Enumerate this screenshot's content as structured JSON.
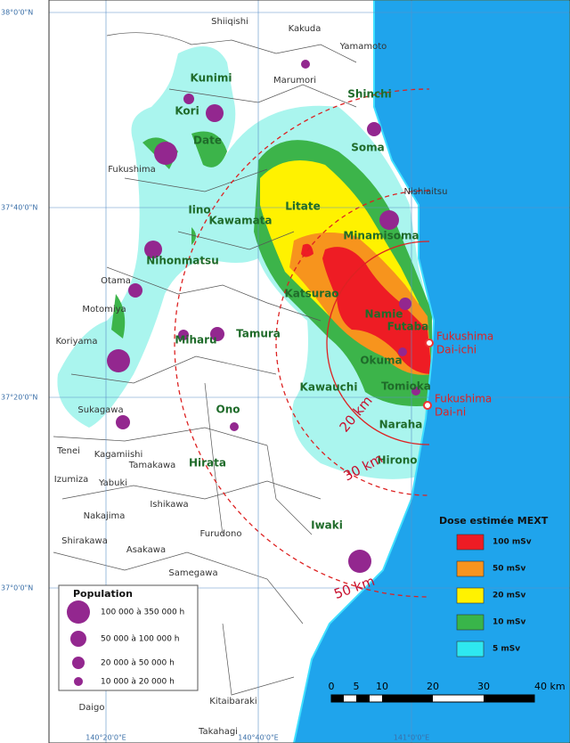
{
  "latitude_labels": [
    "38°0'0\"N",
    "37°40'0\"N",
    "37°20'0\"N",
    "37°0'0\"N"
  ],
  "longitude_labels": [
    "140°20'0\"E",
    "140°40'0\"E",
    "141°0'0\"E"
  ],
  "places": [
    "Shiiqishi",
    "Kakuda",
    "Yamamoto",
    "Marumori",
    "Kunimi",
    "Kori",
    "Shinchi",
    "Soma",
    "Nishiaitsu",
    "Date",
    "Fukushima",
    "Litate",
    "Iino",
    "Kawamata",
    "Minamisoma",
    "Nihonmatsu",
    "Otama",
    "Motomiya",
    "Katsurao",
    "Namie",
    "Futaba",
    "Koriyama",
    "Miharu",
    "Tamura",
    "Okuma",
    "Tomioka",
    "Kawauchi",
    "Ono",
    "Naraha",
    "Sukagawa",
    "Hirata",
    "Hirono",
    "Tenei",
    "Kagamiishi",
    "Tamakawa",
    "Izumiza",
    "Yabuki",
    "Ishikawa",
    "Nakajima",
    "Shirakawa",
    "Furudono",
    "Asakawa",
    "Iwaki",
    "Samegawa",
    "Kitaibaraki",
    "Takahagi",
    "Daigo"
  ],
  "distance_rings": [
    "20 km",
    "30 km",
    "50 km"
  ],
  "power_plants": [
    [
      "Fukushima",
      "Dai-ichi"
    ],
    [
      "Fukushima",
      "Dai-ni"
    ]
  ],
  "dose_legend": {
    "title": "Dose estimée MEXT",
    "items": [
      {
        "label": "100 mSv",
        "color": "#ee1c24"
      },
      {
        "label": "50 mSv",
        "color": "#f7941d"
      },
      {
        "label": "20 mSv",
        "color": "#fff200"
      },
      {
        "label": "10 mSv",
        "color": "#39b54a"
      },
      {
        "label": "5 mSv",
        "color": "#2ee8f0"
      }
    ]
  },
  "population_legend": {
    "title": "Population",
    "items": [
      "100 000 à 350 000 h",
      "50 000 à 100 000 h",
      "20 000 à 50 000 h",
      "10 000 à 20 000 h"
    ]
  },
  "scale": [
    "0",
    "5",
    "10",
    "20",
    "30",
    "40 km"
  ]
}
